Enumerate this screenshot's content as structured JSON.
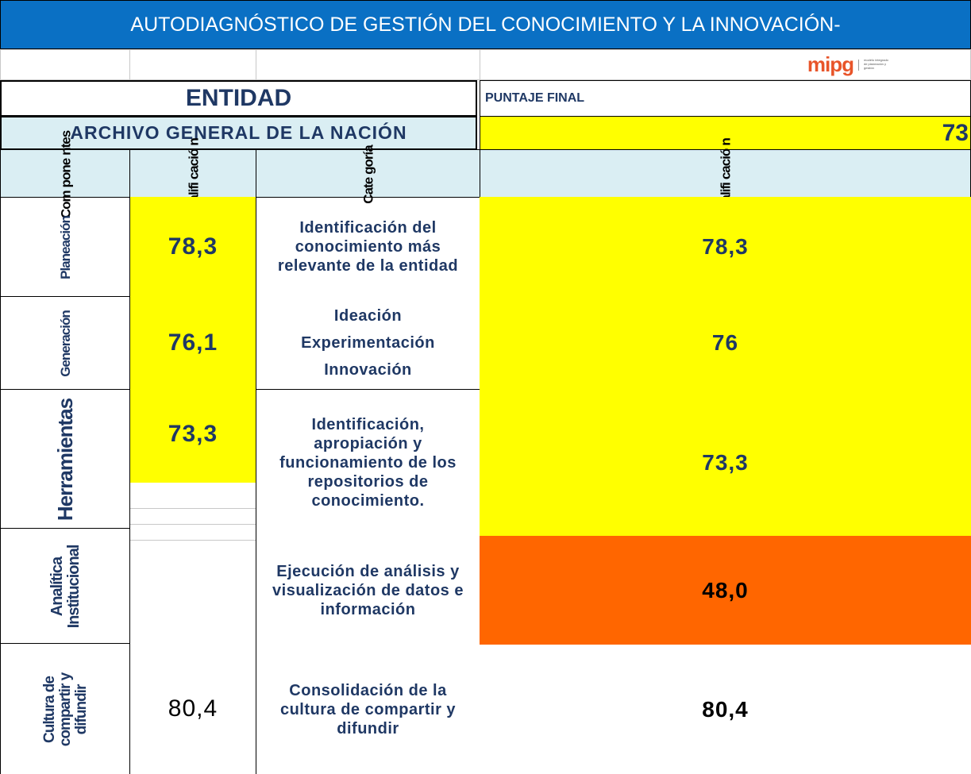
{
  "header": {
    "title": "AUTODIAGNÓSTICO DE GESTIÓN DEL CONOCIMIENTO Y LA INNOVACIÓN-",
    "logo": "mipg",
    "logo_caption": "modelo integrado de planeación y gestión"
  },
  "entity": {
    "label": "ENTIDAD",
    "name": "ARCHIVO GENERAL DE LA NACIÓN",
    "final_label": "PUNTAJE FINAL",
    "final_score": "73"
  },
  "table": {
    "columns": [
      [
        "Com",
        "pone",
        "ntes"
      ],
      [
        "Califi",
        "cació",
        "n"
      ],
      [
        "Cate",
        "goría"
      ],
      [
        "Califi",
        "cació",
        "n"
      ]
    ],
    "rows": [
      {
        "component": "Planeación",
        "score": "78,3",
        "score_color": "#ffff00",
        "category": [
          "Identificación del conocimiento más relevante de la entidad"
        ],
        "final": "78,3",
        "final_color": "#ffff00"
      },
      {
        "component": "Generación",
        "score": "76,1",
        "score_color": "#ffff00",
        "category": [
          "Ideación",
          "Experimentación",
          "Innovación"
        ],
        "final": "76",
        "final_color": "#ffff00"
      },
      {
        "component": "Herramientas",
        "score": "73,3",
        "score_color": "#ffff00",
        "category": [
          "Identificación, apropiación y funcionamiento de los repositorios de conocimiento."
        ],
        "final": "73,3",
        "final_color": "#ffff00"
      },
      {
        "component": "Analítica Institucional",
        "category": [
          "Ejecución de análisis y visualización de datos e información"
        ],
        "final": "48,0",
        "final_color": "#ff6600"
      },
      {
        "component": "Cultura de compartir y difundir",
        "score": "80,4",
        "score_color": "#ffffff",
        "category": [
          "Consolidación de la cultura de compartir y difundir"
        ],
        "final": "80,4",
        "final_color": "#ffffff"
      }
    ]
  }
}
